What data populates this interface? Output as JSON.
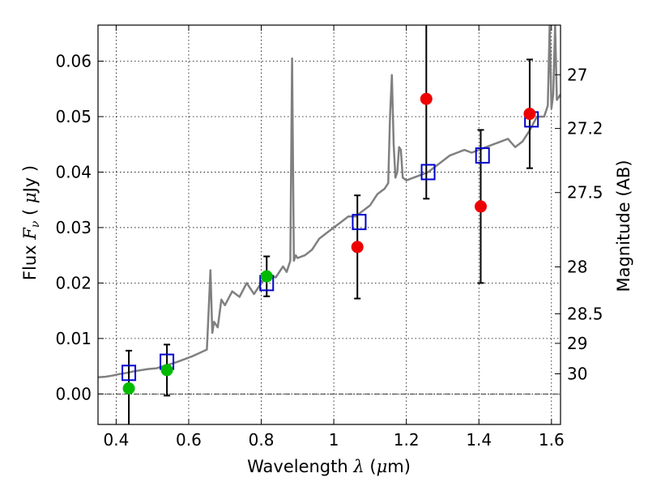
{
  "chart_data": {
    "type": "scatter",
    "xlabel": "Wavelength",
    "xlabel_symbol": "λ",
    "xlabel_unit_open": "(",
    "xlabel_unit_mu": "μ",
    "xlabel_unit_rest": "m)",
    "ylabel": "Flux",
    "ylabel_symbol": "F",
    "ylabel_subscript": "ν",
    "ylabel_unit_open": "(",
    "ylabel_unit_mu": "μ",
    "ylabel_unit_rest": "Jy )",
    "y2label": "Magnitude (AB)",
    "xlim": [
      0.35,
      1.625
    ],
    "ylim": [
      -0.0055,
      0.0665
    ],
    "grid": true,
    "x_ticks": [
      0.4,
      0.6,
      0.8,
      1.0,
      1.2,
      1.4,
      1.6
    ],
    "x_tick_labels": [
      "0.4",
      "0.6",
      "0.8",
      "1",
      "1.2",
      "1.4",
      "1.6"
    ],
    "y_ticks": [
      0.0,
      0.01,
      0.02,
      0.03,
      0.04,
      0.05,
      0.06
    ],
    "y_tick_labels": [
      "0.00",
      "0.01",
      "0.02",
      "0.03",
      "0.04",
      "0.05",
      "0.06"
    ],
    "y2_ticks": [
      27,
      27.2,
      27.5,
      28,
      28.5,
      29,
      30
    ],
    "y2_tick_labels": [
      "27",
      "27.2",
      "27.5",
      "28",
      "28.5",
      "29",
      "30"
    ],
    "series": [
      {
        "name": "model SED",
        "kind": "line",
        "color": "#808080",
        "x": [
          0.35,
          0.37,
          0.39,
          0.41,
          0.43,
          0.45,
          0.47,
          0.49,
          0.51,
          0.53,
          0.55,
          0.57,
          0.59,
          0.61,
          0.63,
          0.65,
          0.655,
          0.66,
          0.665,
          0.67,
          0.68,
          0.69,
          0.7,
          0.72,
          0.74,
          0.76,
          0.78,
          0.8,
          0.82,
          0.84,
          0.86,
          0.87,
          0.88,
          0.885,
          0.89,
          0.895,
          0.9,
          0.92,
          0.94,
          0.96,
          0.98,
          1.0,
          1.02,
          1.04,
          1.06,
          1.08,
          1.1,
          1.12,
          1.14,
          1.15,
          1.155,
          1.16,
          1.165,
          1.17,
          1.175,
          1.18,
          1.185,
          1.19,
          1.2,
          1.22,
          1.24,
          1.26,
          1.28,
          1.3,
          1.32,
          1.34,
          1.36,
          1.38,
          1.4,
          1.42,
          1.44,
          1.46,
          1.48,
          1.5,
          1.52,
          1.54,
          1.56,
          1.58,
          1.59,
          1.595,
          1.6,
          1.605,
          1.61,
          1.615,
          1.625
        ],
        "y": [
          0.003,
          0.0031,
          0.0033,
          0.0036,
          0.0038,
          0.0041,
          0.0043,
          0.0045,
          0.0046,
          0.005,
          0.0054,
          0.0058,
          0.0063,
          0.0068,
          0.0074,
          0.008,
          0.015,
          0.0223,
          0.011,
          0.013,
          0.012,
          0.017,
          0.016,
          0.0185,
          0.0175,
          0.02,
          0.018,
          0.02,
          0.0215,
          0.021,
          0.023,
          0.022,
          0.024,
          0.0605,
          0.024,
          0.025,
          0.0245,
          0.025,
          0.026,
          0.028,
          0.029,
          0.03,
          0.031,
          0.032,
          0.032,
          0.033,
          0.034,
          0.036,
          0.037,
          0.038,
          0.05,
          0.0575,
          0.045,
          0.039,
          0.04,
          0.0445,
          0.044,
          0.039,
          0.0385,
          0.039,
          0.0395,
          0.04,
          0.041,
          0.042,
          0.043,
          0.0435,
          0.044,
          0.0435,
          0.044,
          0.0445,
          0.045,
          0.0455,
          0.046,
          0.0445,
          0.0455,
          0.0475,
          0.05,
          0.05,
          0.052,
          0.0665,
          0.0515,
          0.054,
          0.0665,
          0.053,
          0.054
        ]
      },
      {
        "name": "model photometry",
        "kind": "square",
        "color": "#0000cc",
        "x": [
          0.435,
          0.54,
          0.815,
          1.07,
          1.26,
          1.41,
          1.545
        ],
        "y": [
          0.0038,
          0.0058,
          0.02,
          0.031,
          0.04,
          0.043,
          0.0495
        ]
      },
      {
        "name": "detections",
        "kind": "circle",
        "color": "#ee0000",
        "x": [
          1.065,
          1.255,
          1.405,
          1.54
        ],
        "y": [
          0.0265,
          0.0532,
          0.0338,
          0.0505
        ],
        "err": [
          0.0093,
          0.018,
          0.0138,
          0.0098
        ]
      },
      {
        "name": "upper limits",
        "kind": "circle",
        "color": "#00bb00",
        "x": [
          0.435,
          0.54,
          0.815
        ],
        "y": [
          0.001,
          0.0043,
          0.0212
        ],
        "err": [
          0.0068,
          0.0046,
          0.0036
        ]
      }
    ]
  }
}
